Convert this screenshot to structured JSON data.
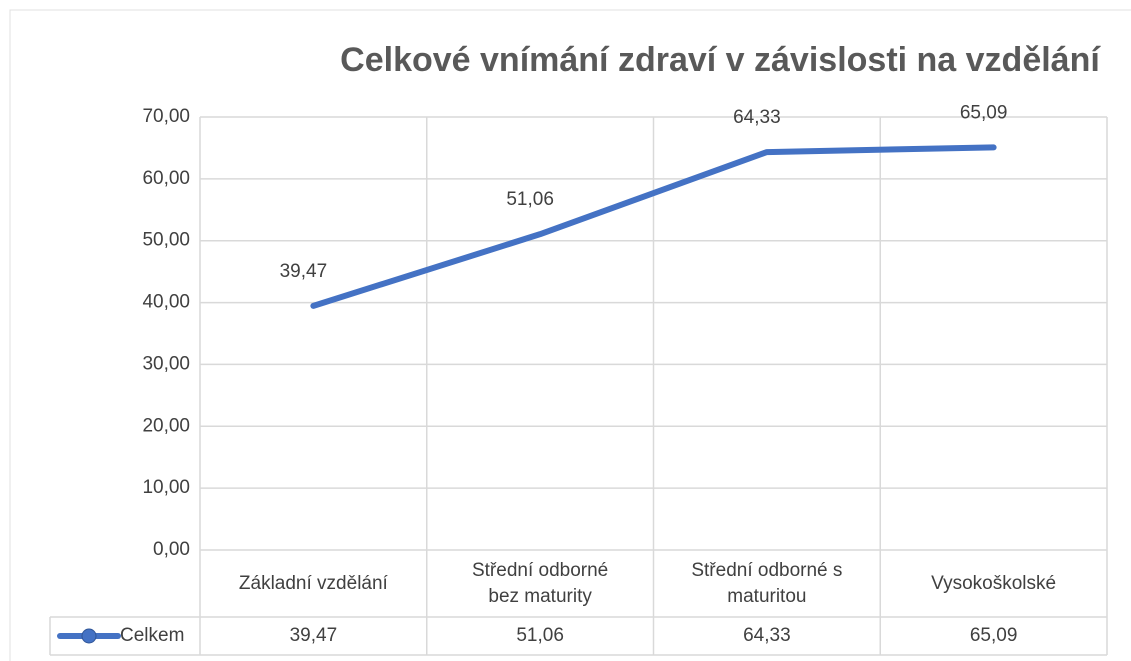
{
  "chart_data": {
    "type": "line",
    "title": "Celkové vnímání zdraví v závislosti na vzdělání",
    "categories": [
      "Základní vzdělání",
      "Střední odborné bez maturity",
      "Střední odborné s maturitou",
      "Vysokoškolské"
    ],
    "series": [
      {
        "name": "Celkem",
        "color": "#4472c4",
        "values": [
          39.47,
          51.06,
          64.33,
          65.09
        ],
        "value_labels": [
          "39,47",
          "51,06",
          "64,33",
          "65,09"
        ]
      }
    ],
    "ylim": [
      0,
      70
    ],
    "yticks": [
      {
        "value": 0,
        "label": "0,00"
      },
      {
        "value": 10,
        "label": "10,00"
      },
      {
        "value": 20,
        "label": "20,00"
      },
      {
        "value": 30,
        "label": "30,00"
      },
      {
        "value": 40,
        "label": "40,00"
      },
      {
        "value": 50,
        "label": "50,00"
      },
      {
        "value": 60,
        "label": "60,00"
      },
      {
        "value": 70,
        "label": "70,00"
      }
    ],
    "grid": true,
    "data_table": true
  }
}
